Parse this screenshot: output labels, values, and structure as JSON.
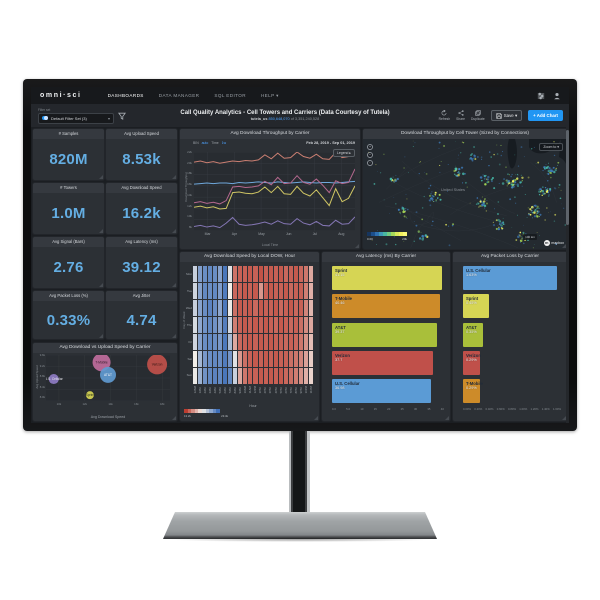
{
  "navbar": {
    "logo": "omni·sci",
    "items": [
      {
        "label": "DASHBOARDS"
      },
      {
        "label": "DATA MANAGER"
      },
      {
        "label": "SQL EDITOR"
      },
      {
        "label": "HELP ▾"
      }
    ]
  },
  "toolbar": {
    "filter_caption": "Filter set",
    "filter_label": "Default Filter Set (3)",
    "title": "Call Quality Analytics - Cell Towers and Carriers (Data Courtesy of Tutela)",
    "subtitle_dataset": "tutela_us",
    "subtitle_count": "850,648,070",
    "subtitle_total": "of 3,351,240,528",
    "refresh_label": "Refresh",
    "share_label": "Share",
    "duplicate_label": "Duplicate",
    "save_label": "Save ▾",
    "add_chart_label": "+ Add Chart"
  },
  "kpis": [
    {
      "label": "# Samples",
      "value": "820M"
    },
    {
      "label": "Avg Upload Speed",
      "value": "8.53k"
    },
    {
      "label": "# Towers",
      "value": "1.0M"
    },
    {
      "label": "Avg Download Speed",
      "value": "16.2k"
    },
    {
      "label": "Avg Signal (Bars)",
      "value": "2.76"
    },
    {
      "label": "Avg Latency (ms)",
      "value": "39.12"
    },
    {
      "label": "Avg Packet Loss (%)",
      "value": "0.33%"
    },
    {
      "label": "Avg Jitter",
      "value": "4.74"
    }
  ],
  "colors": {
    "accent": "#2196f3",
    "kpi_value": "#64aee3"
  },
  "chart_data": [
    {
      "id": "throughput_line",
      "type": "line",
      "title": "Avg Download Throughput by Carrier",
      "bin_label": "BIN",
      "bin_value": "auto",
      "time_label": "Time",
      "time_value": "1w",
      "date_range": "Feb 28, 2019 - Sep 01, 2019",
      "legend_button": "Legend ▸",
      "ylabel": "Download Throughput",
      "xlabel": "Local Time",
      "yticks": [
        "22k",
        "20k",
        "18k",
        "16k",
        "14k",
        "12k",
        "10k",
        "8k"
      ],
      "ymax": 22,
      "ymin": 8,
      "xticks": [
        "Mar",
        "Apr",
        "May",
        "Jun",
        "Jul",
        "Aug"
      ],
      "series": [
        {
          "name": "Verizon",
          "color": "#cb7f72",
          "values": [
            20.2,
            20.4,
            20.1,
            20.3,
            20.0,
            20.2,
            20.4,
            20.3,
            20.5,
            20.4,
            20.6,
            21.5,
            20.8,
            21.8,
            20.9,
            21.0,
            22.0,
            21.2,
            20.9,
            21.6,
            20.8,
            20.7,
            21.9,
            21.0,
            21.2,
            22.8
          ]
        },
        {
          "name": "AT&T",
          "color": "#6fa8dc",
          "values": [
            16.3,
            16.4,
            16.5,
            16.4,
            16.5,
            16.5,
            16.4,
            16.6,
            16.5,
            16.6,
            16.7,
            16.6,
            16.5,
            16.7,
            16.6,
            16.5,
            16.6,
            16.7,
            16.6,
            16.5,
            16.6,
            16.6,
            16.5,
            16.6,
            16.7,
            16.8
          ]
        },
        {
          "name": "T-Mobile",
          "color": "#b4688e",
          "values": [
            13.0,
            13.2,
            12.9,
            13.1,
            12.8,
            13.4,
            15.8,
            15.9,
            15.7,
            15.8,
            16.0,
            16.8,
            16.2,
            17.5,
            16.4,
            16.5,
            17.8,
            16.6,
            16.3,
            17.2,
            16.1,
            14.8,
            16.9,
            16.4,
            16.6,
            19.0
          ]
        },
        {
          "name": "Sprint",
          "color": "#cfc564",
          "values": [
            12.2,
            12.4,
            12.1,
            12.3,
            11.9,
            12.0,
            14.8,
            14.9,
            14.7,
            14.6,
            14.9,
            15.8,
            14.8,
            15.9,
            14.6,
            14.5,
            15.9,
            14.7,
            14.2,
            15.3,
            13.9,
            12.5,
            15.5,
            13.2,
            13.8,
            16.0
          ]
        },
        {
          "name": "U.S. Cellular",
          "color": "#8476b4",
          "values": [
            8.8,
            9.0,
            8.7,
            8.9,
            8.6,
            9.4,
            10.4,
            9.2,
            9.0,
            9.1,
            9.3,
            9.6,
            9.2,
            9.8,
            9.3,
            9.2,
            10.2,
            9.4,
            9.1,
            9.7,
            9.0,
            8.9,
            9.9,
            9.2,
            9.3,
            10.5
          ]
        }
      ]
    },
    {
      "id": "tower_map",
      "type": "map",
      "title": "Download Throughput by Cell Tower (Sized by Connections)",
      "zoom_to_label": "Zoom to ▾",
      "place_label": "United States",
      "legend": {
        "min": "0.00",
        "max": "20k",
        "colors": [
          "#16355e",
          "#1d4f8c",
          "#2e6fb0",
          "#3e97b5",
          "#49b7a0",
          "#71c97f",
          "#a5d95a",
          "#d8e85c",
          "#f2f05e",
          "#f8f878"
        ]
      },
      "scale_label": "100 km",
      "attribution": "mapbox"
    },
    {
      "id": "dow_heatmap",
      "type": "heatmap",
      "title": "Avg Download Speed by Local DOW, Hour",
      "xlabel": "Hour",
      "ylabel": "Day of Week",
      "days": [
        "Mon",
        "Tue",
        "Wed",
        "Thu",
        "Fri",
        "Sat",
        "Sun"
      ],
      "hours": [
        "12AM",
        "1AM",
        "2AM",
        "3AM",
        "4AM",
        "5AM",
        "6AM",
        "7AM",
        "8AM",
        "9AM",
        "10AM",
        "11AM",
        "12PM",
        "1PM",
        "2PM",
        "3PM",
        "4PM",
        "5PM",
        "6PM",
        "7PM",
        "8PM",
        "9PM",
        "10PM",
        "11PM"
      ],
      "legend": {
        "min": "13.2k",
        "max": "23.4k"
      },
      "values": [
        [
          0.62,
          0.82,
          0.88,
          0.9,
          0.88,
          0.8,
          0.97,
          0.55,
          0.15,
          0.1,
          0.1,
          0.08,
          0.1,
          0.06,
          0.1,
          0.08,
          0.1,
          0.08,
          0.12,
          0.1,
          0.08,
          0.12,
          0.16,
          0.3
        ],
        [
          0.6,
          0.8,
          0.9,
          0.88,
          0.9,
          0.82,
          0.95,
          0.5,
          0.12,
          0.1,
          0.08,
          0.1,
          0.08,
          0.25,
          0.1,
          0.08,
          0.1,
          0.1,
          0.08,
          0.12,
          0.1,
          0.1,
          0.18,
          0.32
        ],
        [
          0.62,
          0.8,
          0.88,
          0.92,
          0.88,
          0.78,
          0.96,
          0.52,
          0.14,
          0.08,
          0.1,
          0.08,
          0.12,
          0.08,
          0.1,
          0.1,
          0.08,
          0.12,
          0.1,
          0.08,
          0.12,
          0.1,
          0.2,
          0.34
        ],
        [
          0.58,
          0.78,
          0.86,
          0.9,
          0.86,
          0.8,
          0.94,
          0.6,
          0.18,
          0.1,
          0.08,
          0.1,
          0.08,
          0.1,
          0.08,
          0.1,
          0.12,
          0.08,
          0.1,
          0.12,
          0.1,
          0.14,
          0.22,
          0.3
        ],
        [
          0.6,
          0.8,
          0.88,
          0.9,
          0.88,
          0.84,
          0.96,
          0.7,
          0.3,
          0.12,
          0.1,
          0.08,
          0.1,
          0.08,
          0.1,
          0.08,
          0.1,
          0.1,
          0.12,
          0.1,
          0.12,
          0.16,
          0.24,
          0.36
        ],
        [
          0.5,
          0.72,
          0.84,
          0.88,
          0.9,
          0.88,
          0.95,
          0.85,
          0.55,
          0.25,
          0.14,
          0.1,
          0.08,
          0.1,
          0.08,
          0.1,
          0.08,
          0.1,
          0.1,
          0.14,
          0.16,
          0.2,
          0.28,
          0.4
        ],
        [
          0.52,
          0.74,
          0.86,
          0.9,
          0.92,
          0.9,
          0.97,
          0.9,
          0.62,
          0.3,
          0.16,
          0.1,
          0.1,
          0.08,
          0.1,
          0.08,
          0.1,
          0.08,
          0.12,
          0.14,
          0.18,
          0.24,
          0.32,
          0.42
        ]
      ]
    },
    {
      "id": "latency_bar",
      "type": "bar",
      "title": "Avg Latency (ms) By Carrier",
      "xmax": 42,
      "xticks": [
        "0.0",
        "5.0",
        "10",
        "15",
        "20",
        "25",
        "30",
        "35",
        "40"
      ],
      "bars": [
        {
          "name": "Sprint",
          "value": 41.15,
          "display": "41.15",
          "color": "#d6d554"
        },
        {
          "name": "T-Mobile",
          "value": 40.46,
          "display": "40.46",
          "color": "#cd8b29"
        },
        {
          "name": "AT&T",
          "value": 39.37,
          "display": "39.37",
          "color": "#a9bf3a"
        },
        {
          "name": "Verizon",
          "value": 37.7,
          "display": "37.7",
          "color": "#c0504a"
        },
        {
          "name": "U.S. Cellular",
          "value": 36.98,
          "display": "36.98",
          "color": "#5b9bd5"
        }
      ]
    },
    {
      "id": "packet_bar",
      "type": "bar",
      "title": "Avg Packet Loss by Carrier",
      "xmax": 1.7,
      "xticks": [
        "0.00%",
        "0.20%",
        "0.40%",
        "0.60%",
        "0.80%",
        "1.00%",
        "1.20%",
        "1.40%",
        "1.60%"
      ],
      "bars": [
        {
          "name": "U.S. Cellular",
          "value": 1.63,
          "display": "1.63%",
          "color": "#5b9bd5"
        },
        {
          "name": "Sprint",
          "value": 0.45,
          "display": "0.45%",
          "color": "#d6d554"
        },
        {
          "name": "AT&T",
          "value": 0.35,
          "display": "0.35%",
          "color": "#a9bf3a"
        },
        {
          "name": "Verizon",
          "value": 0.29,
          "display": "0.29%",
          "color": "#c0504a"
        },
        {
          "name": "T-Mobile",
          "value": 0.29,
          "display": "0.29%",
          "color": "#cd8b29"
        }
      ]
    },
    {
      "id": "speed_bubble",
      "type": "scatter",
      "title": "Avg Download vs Upload Speed by Carrier",
      "xlabel": "Avg Download Speed",
      "ylabel": "Avg Upload Speed",
      "xlim": [
        9,
        18.6
      ],
      "ylim": [
        7.7,
        9.9
      ],
      "xticks": [
        10,
        12,
        14,
        16,
        18
      ],
      "xtick_labels": [
        "10k",
        "12k",
        "14k",
        "16k",
        "18k"
      ],
      "yticks": [
        "9.6k",
        "9.2k",
        "8.8k",
        "8.4k",
        "8.0k"
      ],
      "points": [
        {
          "name": "U.S. Cellular",
          "x": 9.6,
          "y": 8.75,
          "r": 5,
          "color": "#8e7cc3",
          "text": "#e8e8ee"
        },
        {
          "name": "Sprint",
          "x": 12.4,
          "y": 7.98,
          "r": 4,
          "color": "#d6d554",
          "text": "#2a2f1a"
        },
        {
          "name": "T-Mobile",
          "x": 13.3,
          "y": 9.55,
          "r": 9,
          "color": "#bf6c9c",
          "text": "#2d1b26"
        },
        {
          "name": "AT&T",
          "x": 13.8,
          "y": 8.95,
          "r": 8,
          "color": "#5f9ad0",
          "text": "#f0f4f8"
        },
        {
          "name": "Verizon",
          "x": 17.6,
          "y": 9.45,
          "r": 10,
          "color": "#c0504a",
          "text": "#2e1512"
        }
      ]
    }
  ]
}
